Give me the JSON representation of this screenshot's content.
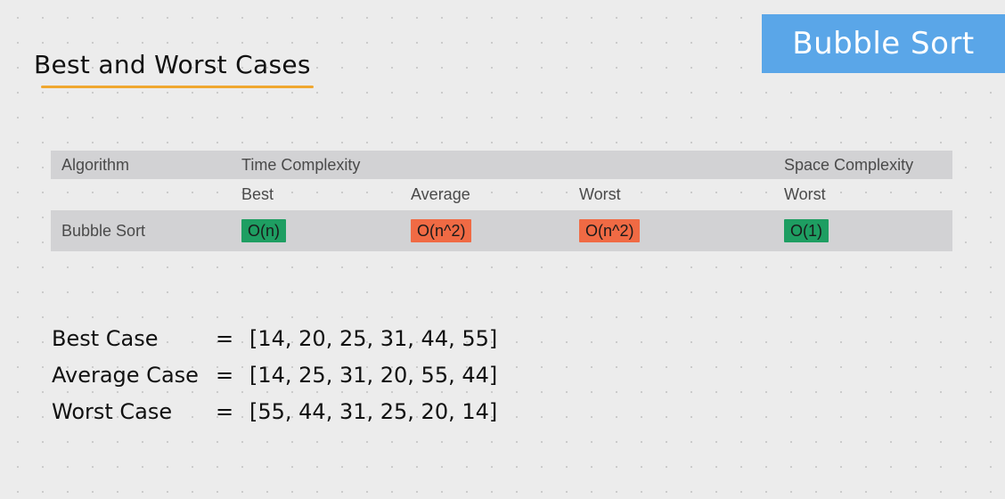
{
  "badge": {
    "label": "Bubble Sort",
    "color": "#5aa6e8"
  },
  "title": {
    "text": "Best and Worst Cases",
    "underline_color": "#f0a830"
  },
  "table": {
    "headers": {
      "algorithm": "Algorithm",
      "time_complexity": "Time Complexity",
      "space_complexity": "Space Complexity"
    },
    "subheaders": {
      "best": "Best",
      "average": "Average",
      "worst": "Worst",
      "space_worst": "Worst"
    },
    "row": {
      "algorithm": "Bubble Sort",
      "best": {
        "text": "O(n)",
        "color": "#1e9e62"
      },
      "average": {
        "text": "O(n^2)",
        "color": "#f06a44"
      },
      "worst": {
        "text": "O(n^2)",
        "color": "#f06a44"
      },
      "space": {
        "text": "O(1)",
        "color": "#1e9e62"
      }
    }
  },
  "cases": [
    {
      "label": "Best Case",
      "eq": "=",
      "array": "[14, 20, 25, 31, 44, 55]"
    },
    {
      "label": "Average Case",
      "eq": "=",
      "array": "[14, 25, 31, 20, 55, 44]"
    },
    {
      "label": "Worst Case",
      "eq": "=",
      "array": "[55, 44, 31, 25, 20, 14]"
    }
  ]
}
